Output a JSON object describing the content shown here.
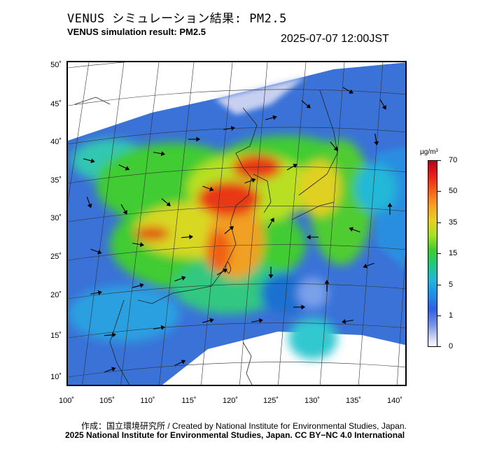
{
  "title_jp": "VENUS シミュレーション結果: PM2.5",
  "title_en": "VENUS simulation result: PM2.5",
  "timestamp": "2025-07-07 12:00JST",
  "map": {
    "lat_labels": [
      "50˚",
      "45˚",
      "40˚",
      "35˚",
      "30˚",
      "25˚",
      "20˚",
      "15˚",
      "10˚"
    ],
    "lon_labels": [
      "100˚",
      "105˚",
      "110˚",
      "115˚",
      "120˚",
      "125˚",
      "130˚",
      "135˚",
      "140˚"
    ]
  },
  "colorbar": {
    "unit": "µg/m³",
    "labels": [
      "70",
      "50",
      "35",
      "15",
      "5",
      "1",
      "0"
    ]
  },
  "credits": {
    "line1": "作成：国立環境研究所 / Created by National Institute for Environmental Studies, Japan.",
    "line2": "2025 National Institute for Environmental Studies, Japan. CC BY−NC 4.0 International"
  },
  "colors": {
    "very_high": "#d81e1a",
    "high": "#f0a020",
    "mid": "#40cc30",
    "low": "#20b8d8",
    "very_low": "#3060e0",
    "minimal": "#c8d0f0"
  }
}
